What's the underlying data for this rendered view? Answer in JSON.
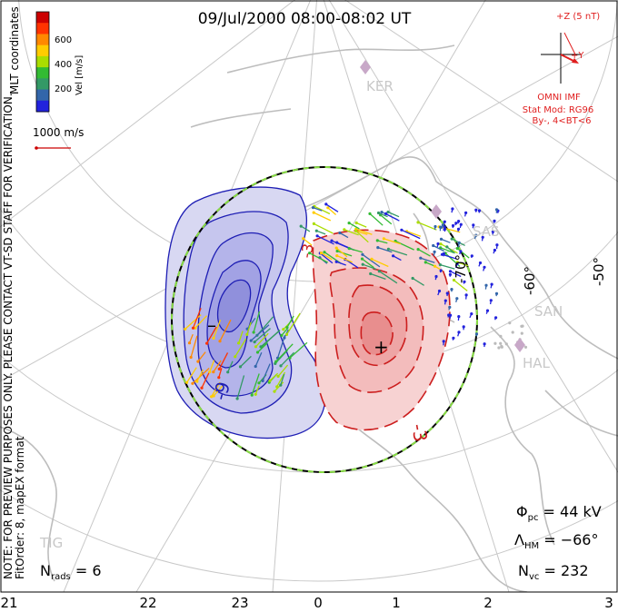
{
  "title": "09/Jul/2000 08:00-08:02 UT",
  "colorbar": {
    "label": "Vel [m/s]",
    "ticks": [
      "600",
      "400",
      "200"
    ],
    "colors": [
      "#cc0000",
      "#ff3300",
      "#ff8800",
      "#ffcc00",
      "#aadd00",
      "#33bb33",
      "#339966",
      "#3366aa",
      "#2222dd"
    ]
  },
  "coord_system": "MLT coordinates",
  "velocity_scale": "1000 m/s",
  "notice": "NOTE: FOR PREVIEW PURPOSES ONLY. PLEASE CONTACT VT-SD STAFF FOR VERIFICATION.",
  "fit_info": "FitOrder: 8, mapEX format",
  "imf": {
    "z_label": "+Z (5 nT)",
    "y_label": "+Y",
    "source": "OMNI IMF",
    "stat_mod": "Stat Mod: RG96",
    "condition": "By-, 4<BT<6"
  },
  "stations": [
    "KER",
    "SAS",
    "SAN",
    "HAL",
    "TIG"
  ],
  "latitude_labels": [
    "-70°",
    "-60°",
    "-50°"
  ],
  "contour_labels": [
    "-9",
    "-3",
    "-3"
  ],
  "potential_markers": [
    "–",
    "+"
  ],
  "stats": {
    "phi_pc": "44 kV",
    "lambda_hm": "−66°",
    "n_vc": "232",
    "n_rads": "6"
  },
  "mlt_ticks": [
    "21",
    "22",
    "23",
    "0",
    "1",
    "2",
    "3"
  ]
}
